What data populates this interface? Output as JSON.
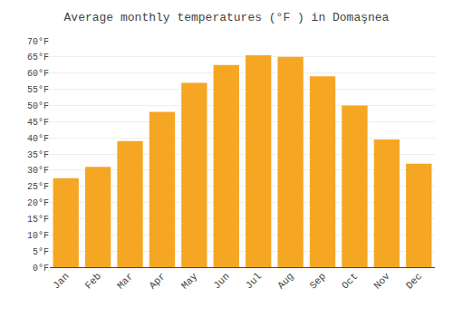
{
  "chart_data": {
    "type": "bar",
    "title": "Average monthly temperatures (°F ) in Domaşnea",
    "categories": [
      "Jan",
      "Feb",
      "Mar",
      "Apr",
      "May",
      "Jun",
      "Jul",
      "Aug",
      "Sep",
      "Oct",
      "Nov",
      "Dec"
    ],
    "values": [
      27.5,
      31.0,
      39.0,
      48.0,
      57.0,
      62.5,
      65.5,
      65.0,
      59.0,
      50.0,
      39.5,
      32.0
    ],
    "color": "#F5A623",
    "ylim": [
      0,
      70
    ],
    "yticks": [
      {
        "value": 0,
        "label": "0°F"
      },
      {
        "value": 5,
        "label": "5°F"
      },
      {
        "value": 10,
        "label": "10°F"
      },
      {
        "value": 15,
        "label": "15°F"
      },
      {
        "value": 20,
        "label": "20°F"
      },
      {
        "value": 25,
        "label": "25°F"
      },
      {
        "value": 30,
        "label": "30°F"
      },
      {
        "value": 35,
        "label": "35°F"
      },
      {
        "value": 40,
        "label": "40°F"
      },
      {
        "value": 45,
        "label": "45°F"
      },
      {
        "value": 50,
        "label": "50°F"
      },
      {
        "value": 55,
        "label": "55°F"
      },
      {
        "value": 60,
        "label": "60°F"
      },
      {
        "value": 65,
        "label": "65°F"
      },
      {
        "value": 70,
        "label": "70°F"
      }
    ],
    "grid": true
  }
}
